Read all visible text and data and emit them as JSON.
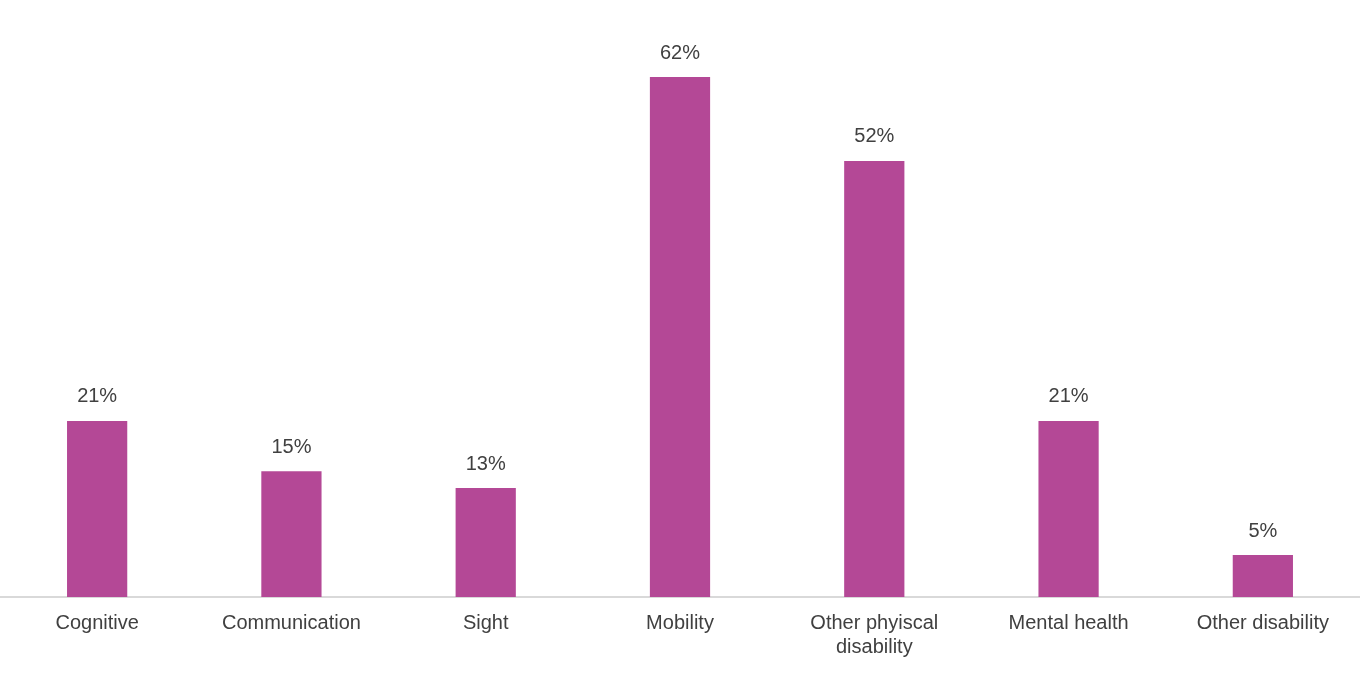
{
  "chart_data": {
    "type": "bar",
    "categories": [
      "Cognitive",
      "Communication",
      "Sight",
      "Mobility",
      "Other phyiscal disability",
      "Mental health",
      "Other disability"
    ],
    "values": [
      21,
      15,
      13,
      62,
      52,
      21,
      5
    ],
    "value_labels": [
      "21%",
      "15%",
      "13%",
      "62%",
      "52%",
      "21%",
      "5%"
    ],
    "color": "#b44896",
    "grid": false,
    "legend": false
  }
}
